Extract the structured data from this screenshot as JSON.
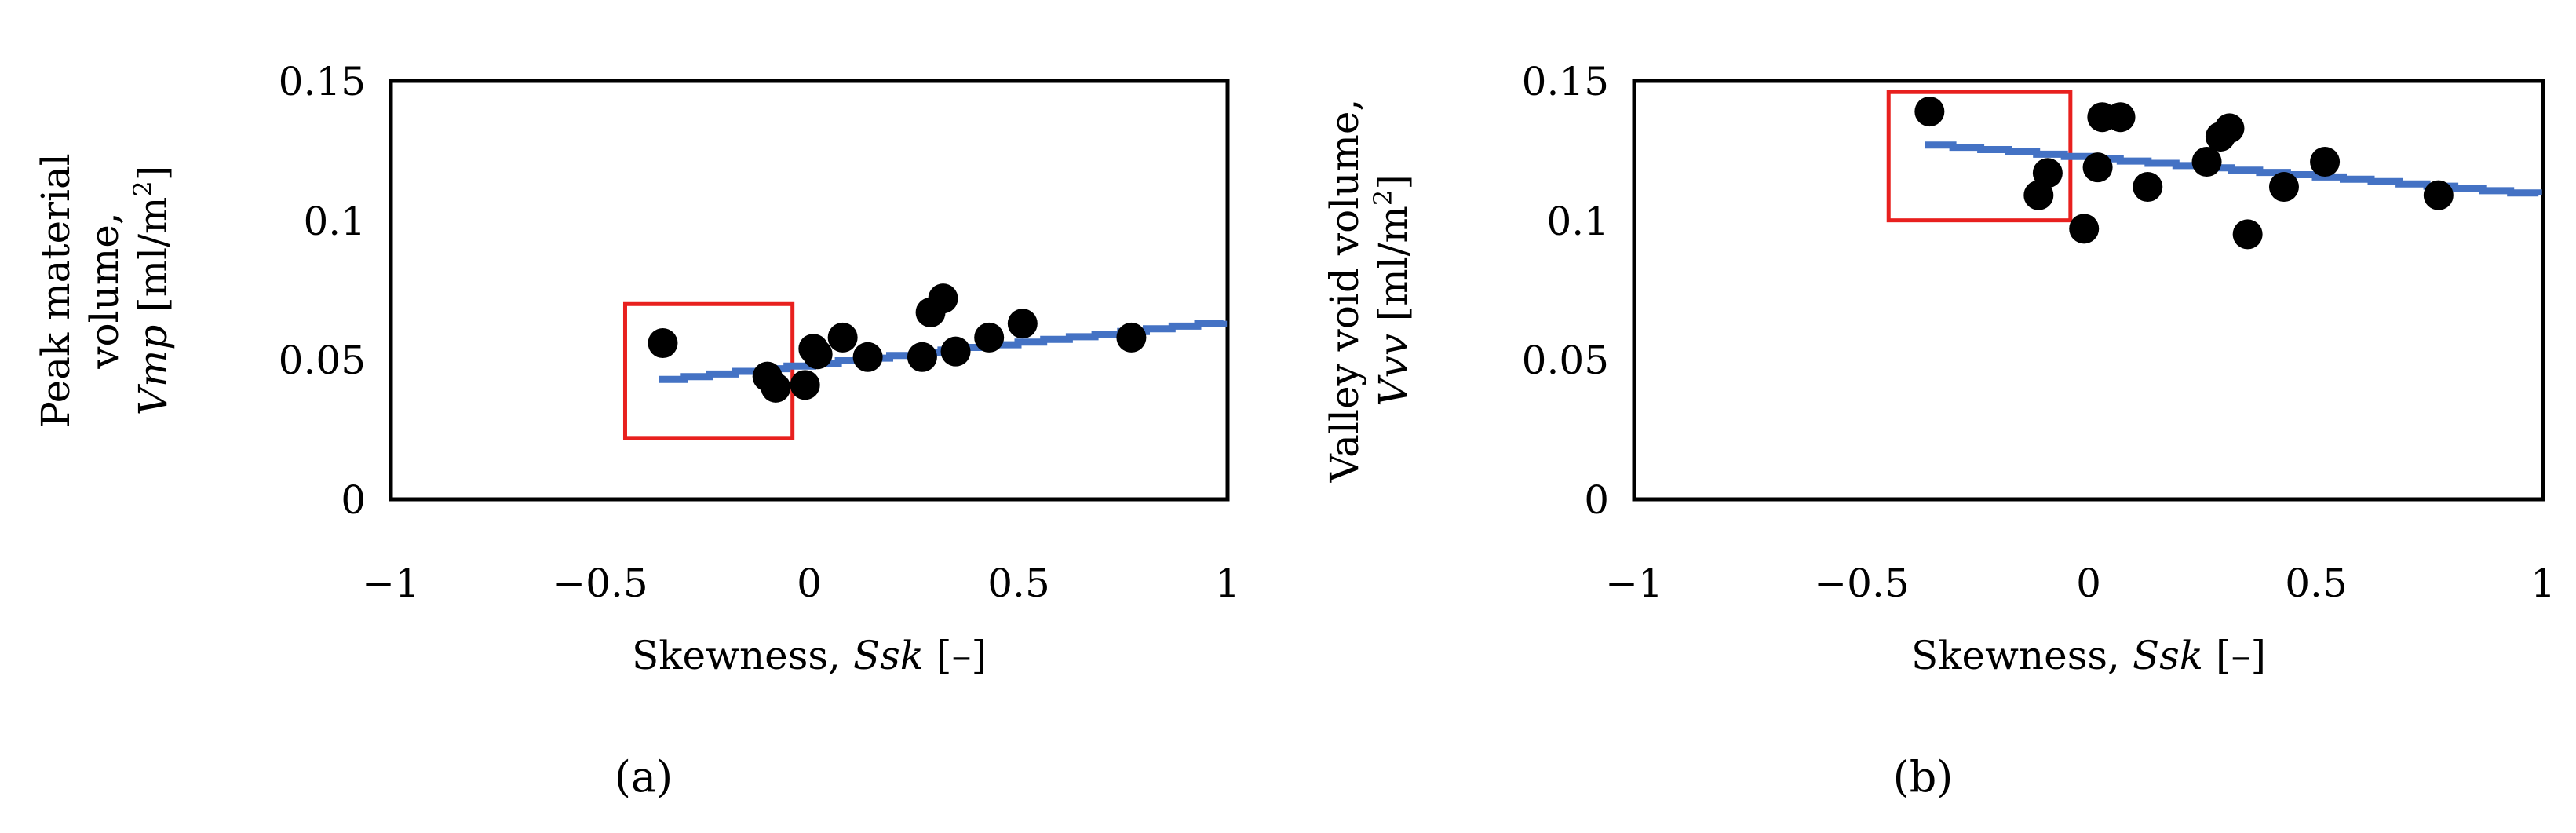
{
  "chart_data": [
    {
      "type": "scatter",
      "panel_label": "(a)",
      "xlabel": {
        "text": "Skewness, ",
        "symbol": "Ssk",
        "unit": " [–]"
      },
      "ylabel": {
        "line1": "Peak material",
        "line2": "volume,",
        "symbol": "Vmp",
        "unit_prefix": " [ml/m",
        "unit_sup": "2",
        "unit_suffix": "]"
      },
      "xlim": [
        -1,
        1
      ],
      "ylim": [
        0,
        0.15
      ],
      "xticks": [
        -1,
        -0.5,
        0,
        0.5,
        1
      ],
      "xtick_labels": [
        "−1",
        "−0.5",
        "0",
        "0.5",
        "1"
      ],
      "yticks": [
        0,
        0.05,
        0.1,
        0.15
      ],
      "ytick_labels": [
        "0",
        "0.05",
        "0.1",
        "0.15"
      ],
      "grid": false,
      "points": [
        [
          -0.35,
          0.056
        ],
        [
          -0.1,
          0.044
        ],
        [
          -0.08,
          0.04
        ],
        [
          -0.01,
          0.041
        ],
        [
          0.01,
          0.054
        ],
        [
          0.02,
          0.052
        ],
        [
          0.08,
          0.058
        ],
        [
          0.14,
          0.051
        ],
        [
          0.27,
          0.051
        ],
        [
          0.29,
          0.067
        ],
        [
          0.32,
          0.072
        ],
        [
          0.35,
          0.053
        ],
        [
          0.43,
          0.058
        ],
        [
          0.51,
          0.063
        ],
        [
          0.77,
          0.058
        ]
      ],
      "trend": {
        "x0": -0.36,
        "y0": 0.043,
        "x1": 0.99,
        "y1": 0.064
      },
      "highlight_box": {
        "x0": -0.44,
        "x1": -0.04,
        "y0": 0.022,
        "y1": 0.07
      },
      "colors": {
        "points": "#000000",
        "trend": "#4472c4",
        "box": "#e8201e"
      }
    },
    {
      "type": "scatter",
      "panel_label": "(b)",
      "xlabel": {
        "text": "Skewness, ",
        "symbol": "Ssk",
        "unit": " [–]"
      },
      "ylabel": {
        "line1": "Valley void volume,",
        "line2": "",
        "symbol": "Vvv",
        "unit_prefix": " [ml/m",
        "unit_sup": "2",
        "unit_suffix": "]"
      },
      "xlim": [
        -1,
        1
      ],
      "ylim": [
        0,
        0.15
      ],
      "xticks": [
        -1,
        -0.5,
        0,
        0.5,
        1
      ],
      "xtick_labels": [
        "−1",
        "−0.5",
        "0",
        "0.5",
        "1"
      ],
      "yticks": [
        0,
        0.05,
        0.1,
        0.15
      ],
      "ytick_labels": [
        "0",
        "0.05",
        "0.1",
        "0.15"
      ],
      "grid": false,
      "points": [
        [
          -0.35,
          0.139
        ],
        [
          -0.09,
          0.117
        ],
        [
          -0.11,
          0.109
        ],
        [
          -0.01,
          0.097
        ],
        [
          0.02,
          0.119
        ],
        [
          0.03,
          0.137
        ],
        [
          0.07,
          0.137
        ],
        [
          0.13,
          0.112
        ],
        [
          0.26,
          0.121
        ],
        [
          0.29,
          0.13
        ],
        [
          0.31,
          0.133
        ],
        [
          0.35,
          0.095
        ],
        [
          0.43,
          0.112
        ],
        [
          0.52,
          0.121
        ],
        [
          0.77,
          0.109
        ]
      ],
      "trend": {
        "x0": -0.36,
        "y0": 0.127,
        "x1": 0.99,
        "y1": 0.109
      },
      "highlight_box": {
        "x0": -0.44,
        "x1": -0.04,
        "y0": 0.1,
        "y1": 0.146
      },
      "colors": {
        "points": "#000000",
        "trend": "#4472c4",
        "box": "#e8201e"
      }
    }
  ]
}
